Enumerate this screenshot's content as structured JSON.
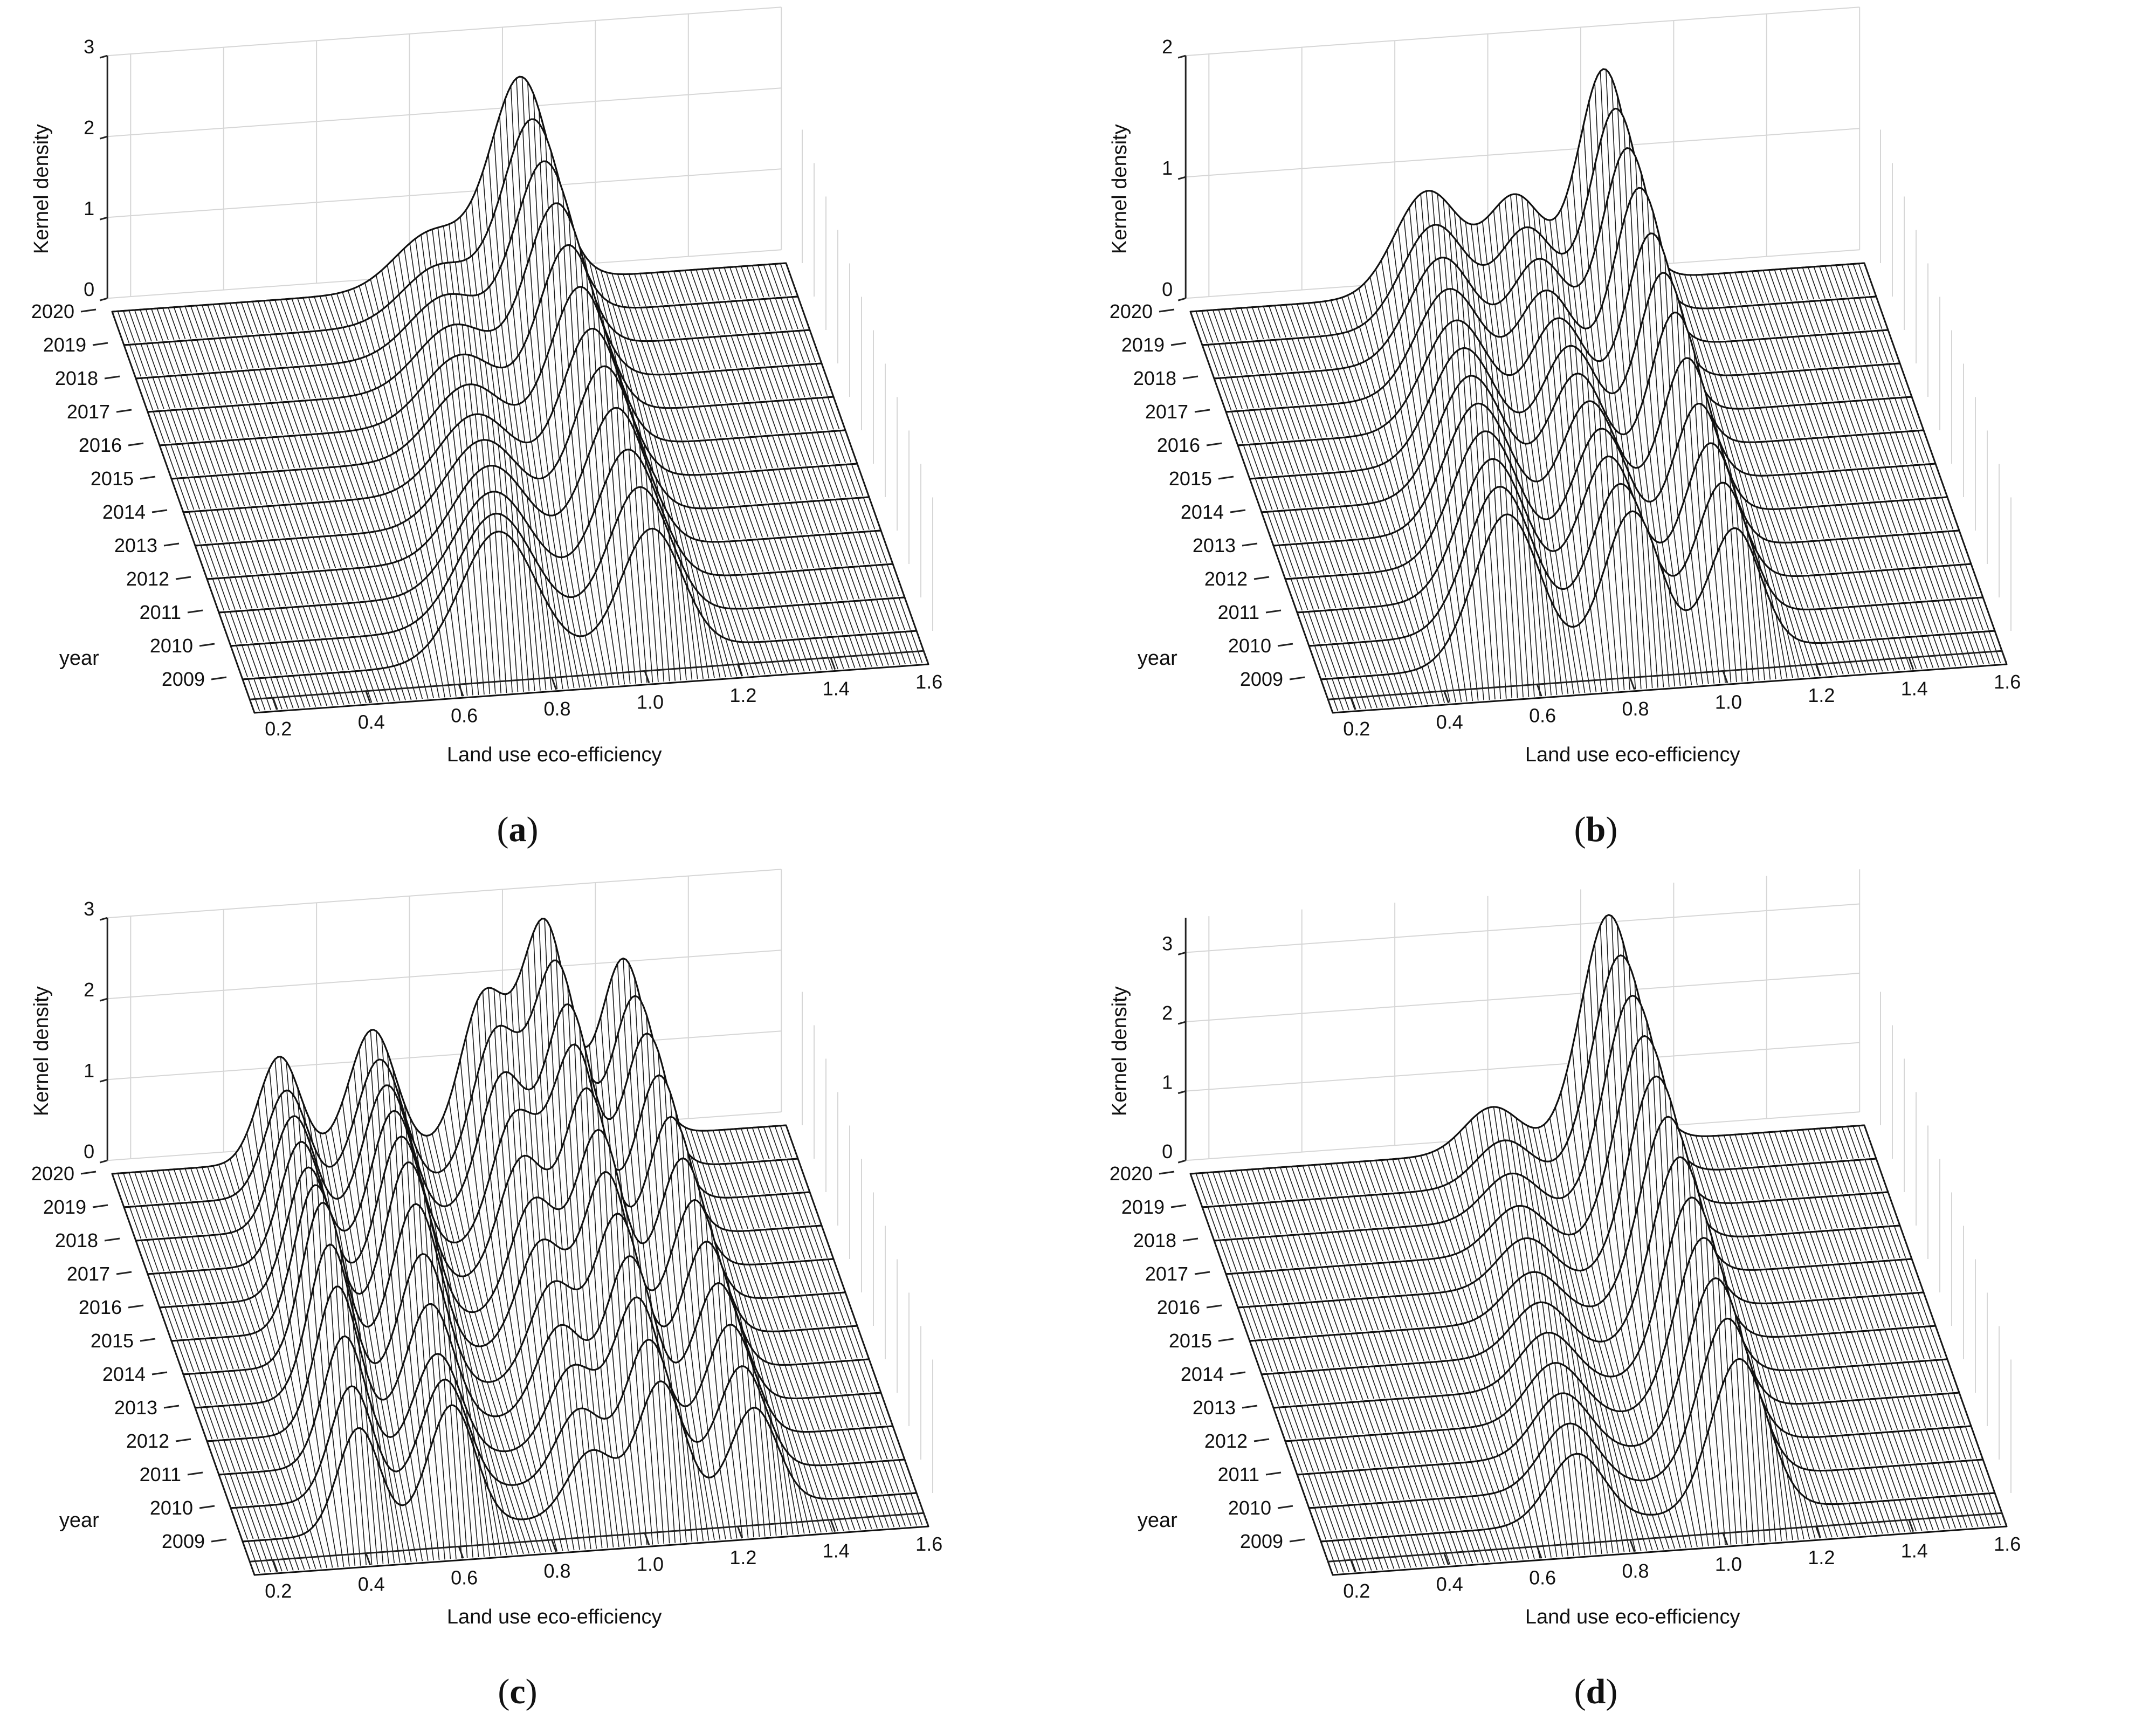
{
  "figure": {
    "title": ""
  },
  "chart_data": [
    {
      "id": "a",
      "panel_label": "a",
      "type": "ridge-3d",
      "xlabel": "Land use eco-efficiency",
      "ylabel": "year",
      "zlabel": "Kernel density",
      "x_ticks": [
        "0.2",
        "0.4",
        "0.6",
        "0.8",
        "1.0",
        "1.2",
        "1.4",
        "1.6"
      ],
      "z_ticks": [
        "0",
        "1",
        "2",
        "3"
      ],
      "xlim": [
        0.15,
        1.6
      ],
      "zlim": [
        0,
        3
      ],
      "years": [
        "2009",
        "2010",
        "2011",
        "2012",
        "2013",
        "2014",
        "2015",
        "2016",
        "2017",
        "2018",
        "2019",
        "2020"
      ],
      "peaks": [
        {
          "mu": [
            0.7,
            0.72,
            0.74,
            0.76,
            0.77,
            0.78,
            0.79,
            0.8,
            0.81,
            0.82,
            0.83,
            0.84
          ],
          "sigma": 0.08,
          "h": [
            1.6,
            1.4,
            1.25,
            1.15,
            1.05,
            0.95,
            0.9,
            0.85,
            0.8,
            0.75,
            0.7,
            0.7
          ]
        },
        {
          "mu": [
            1.03,
            1.03,
            1.03,
            1.03,
            1.03,
            1.03,
            1.03,
            1.03,
            1.03,
            1.03,
            1.03,
            1.03
          ],
          "sigma": 0.065,
          "h": [
            1.5,
            1.6,
            1.65,
            1.75,
            1.85,
            1.9,
            2.0,
            2.1,
            2.2,
            2.3,
            2.4,
            2.5
          ]
        }
      ]
    },
    {
      "id": "b",
      "panel_label": "b",
      "type": "ridge-3d",
      "xlabel": "Land use eco-efficiency",
      "ylabel": "year",
      "zlabel": "Kernel density",
      "x_ticks": [
        "0.2",
        "0.4",
        "0.6",
        "0.8",
        "1.0",
        "1.2",
        "1.4",
        "1.6"
      ],
      "z_ticks": [
        "0",
        "1",
        "2"
      ],
      "xlim": [
        0.15,
        1.6
      ],
      "zlim": [
        0,
        2
      ],
      "years": [
        "2009",
        "2010",
        "2011",
        "2012",
        "2013",
        "2014",
        "2015",
        "2016",
        "2017",
        "2018",
        "2019",
        "2020"
      ],
      "peaks": [
        {
          "mu": [
            0.55,
            0.56,
            0.57,
            0.58,
            0.59,
            0.6,
            0.61,
            0.62,
            0.63,
            0.64,
            0.65,
            0.66
          ],
          "sigma": 0.07,
          "h": [
            1.25,
            1.2,
            1.15,
            1.1,
            1.05,
            1.0,
            0.95,
            0.9,
            0.88,
            0.86,
            0.85,
            0.85
          ]
        },
        {
          "mu": [
            0.82,
            0.82,
            0.82,
            0.83,
            0.83,
            0.83,
            0.84,
            0.84,
            0.84,
            0.85,
            0.85,
            0.85
          ],
          "sigma": 0.06,
          "h": [
            1.2,
            1.15,
            1.1,
            1.05,
            1.0,
            0.95,
            0.9,
            0.85,
            0.8,
            0.78,
            0.76,
            0.75
          ]
        },
        {
          "mu": [
            1.04,
            1.04,
            1.04,
            1.04,
            1.04,
            1.04,
            1.04,
            1.04,
            1.04,
            1.04,
            1.04,
            1.04
          ],
          "sigma": 0.055,
          "h": [
            1.0,
            1.1,
            1.15,
            1.2,
            1.3,
            1.4,
            1.45,
            1.5,
            1.6,
            1.65,
            1.7,
            1.75
          ]
        }
      ]
    },
    {
      "id": "c",
      "panel_label": "c",
      "type": "ridge-3d",
      "xlabel": "Land use eco-efficiency",
      "ylabel": "year",
      "zlabel": "Kernel density",
      "x_ticks": [
        "0.2",
        "0.4",
        "0.6",
        "0.8",
        "1.0",
        "1.2",
        "1.4",
        "1.6"
      ],
      "z_ticks": [
        "0",
        "1",
        "2",
        "3"
      ],
      "xlim": [
        0.15,
        1.6
      ],
      "zlim": [
        0,
        3
      ],
      "years": [
        "2009",
        "2010",
        "2011",
        "2012",
        "2013",
        "2014",
        "2015",
        "2016",
        "2017",
        "2018",
        "2019",
        "2020"
      ],
      "peaks": [
        {
          "mu": [
            0.4,
            0.41,
            0.42,
            0.43,
            0.44,
            0.45,
            0.46,
            0.47,
            0.48,
            0.49,
            0.5,
            0.51
          ],
          "sigma": 0.045,
          "h": [
            1.3,
            1.4,
            1.6,
            1.8,
            1.9,
            2.0,
            1.8,
            1.6,
            1.5,
            1.4,
            1.3,
            1.3
          ]
        },
        {
          "mu": [
            0.6,
            0.61,
            0.62,
            0.63,
            0.64,
            0.65,
            0.66,
            0.67,
            0.68,
            0.69,
            0.7,
            0.71
          ],
          "sigma": 0.05,
          "h": [
            1.5,
            1.4,
            1.3,
            1.5,
            1.7,
            1.9,
            2.0,
            1.9,
            1.8,
            1.7,
            1.6,
            1.55
          ]
        },
        {
          "mu": [
            0.9,
            0.9,
            0.91,
            0.91,
            0.92,
            0.92,
            0.93,
            0.93,
            0.94,
            0.94,
            0.95,
            0.95
          ],
          "sigma": 0.05,
          "h": [
            0.8,
            0.9,
            1.0,
            1.1,
            1.2,
            1.3,
            1.4,
            1.5,
            1.6,
            1.7,
            1.8,
            1.85
          ]
        },
        {
          "mu": [
            1.05,
            1.05,
            1.05,
            1.06,
            1.06,
            1.06,
            1.07,
            1.07,
            1.07,
            1.08,
            1.08,
            1.08
          ],
          "sigma": 0.05,
          "h": [
            1.6,
            1.7,
            1.8,
            1.9,
            2.0,
            2.1,
            2.2,
            2.3,
            2.4,
            2.5,
            2.6,
            2.7
          ]
        },
        {
          "mu": [
            1.25,
            1.25,
            1.25,
            1.25,
            1.25,
            1.25,
            1.25,
            1.25,
            1.25,
            1.25,
            1.25,
            1.25
          ],
          "sigma": 0.05,
          "h": [
            1.2,
            1.3,
            1.4,
            1.5,
            1.6,
            1.7,
            1.8,
            1.9,
            2.0,
            2.1,
            2.15,
            2.2
          ]
        }
      ]
    },
    {
      "id": "d",
      "panel_label": "d",
      "type": "ridge-3d",
      "xlabel": "Land use eco-efficiency",
      "ylabel": "year",
      "zlabel": "Kernel density",
      "x_ticks": [
        "0.2",
        "0.4",
        "0.6",
        "0.8",
        "1.0",
        "1.2",
        "1.4",
        "1.6"
      ],
      "z_ticks": [
        "0",
        "1",
        "2",
        "3"
      ],
      "xlim": [
        0.15,
        1.6
      ],
      "zlim": [
        0,
        3.5
      ],
      "years": [
        "2009",
        "2010",
        "2011",
        "2012",
        "2013",
        "2014",
        "2015",
        "2016",
        "2017",
        "2018",
        "2019",
        "2020"
      ],
      "peaks": [
        {
          "mu": [
            0.7,
            0.71,
            0.72,
            0.73,
            0.74,
            0.75,
            0.76,
            0.77,
            0.78,
            0.79,
            0.8,
            0.8
          ],
          "sigma": 0.06,
          "h": [
            1.0,
            0.95,
            0.9,
            0.85,
            0.8,
            0.75,
            0.7,
            0.7,
            0.68,
            0.66,
            0.65,
            0.65
          ]
        },
        {
          "mu": [
            1.05,
            1.05,
            1.05,
            1.05,
            1.05,
            1.05,
            1.05,
            1.05,
            1.05,
            1.05,
            1.05,
            1.05
          ],
          "sigma": 0.06,
          "h": [
            2.2,
            2.3,
            2.4,
            2.5,
            2.6,
            2.7,
            2.8,
            2.9,
            3.0,
            3.1,
            3.2,
            3.3
          ]
        }
      ]
    }
  ]
}
